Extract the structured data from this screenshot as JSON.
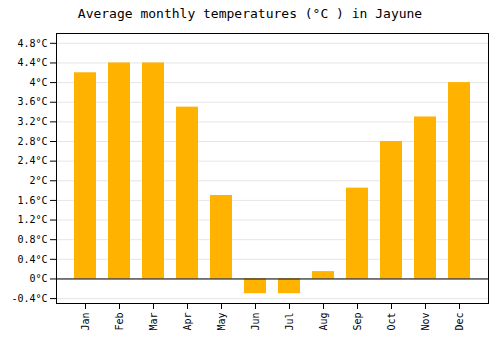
{
  "chart_data": {
    "type": "bar",
    "title": "Average monthly temperatures (°C ) in Jayune",
    "categories": [
      "Jan",
      "Feb",
      "Mar",
      "Apr",
      "May",
      "Jun",
      "Jul",
      "Aug",
      "Sep",
      "Oct",
      "Nov",
      "Dec"
    ],
    "values": [
      4.2,
      4.4,
      4.4,
      3.5,
      1.7,
      -0.3,
      -0.3,
      0.15,
      1.85,
      2.8,
      3.3,
      4.0
    ],
    "color": "#FFB300",
    "ylim": [
      -0.5,
      5.0
    ],
    "yticks": [
      {
        "value": -0.4,
        "label": "-0.4°C"
      },
      {
        "value": 0.0,
        "label": "0°C"
      },
      {
        "value": 0.4,
        "label": "0.4°C"
      },
      {
        "value": 0.8,
        "label": "0.8°C"
      },
      {
        "value": 1.2,
        "label": "1.2°C"
      },
      {
        "value": 1.6,
        "label": "1.6°C"
      },
      {
        "value": 2.0,
        "label": "2°C"
      },
      {
        "value": 2.4,
        "label": "2.4°C"
      },
      {
        "value": 2.8,
        "label": "2.8°C"
      },
      {
        "value": 3.2,
        "label": "3.2°C"
      },
      {
        "value": 3.6,
        "label": "3.6°C"
      },
      {
        "value": 4.0,
        "label": "4°C"
      },
      {
        "value": 4.4,
        "label": "4.4°C"
      },
      {
        "value": 4.8,
        "label": "4.8°C"
      }
    ],
    "grid": true
  }
}
